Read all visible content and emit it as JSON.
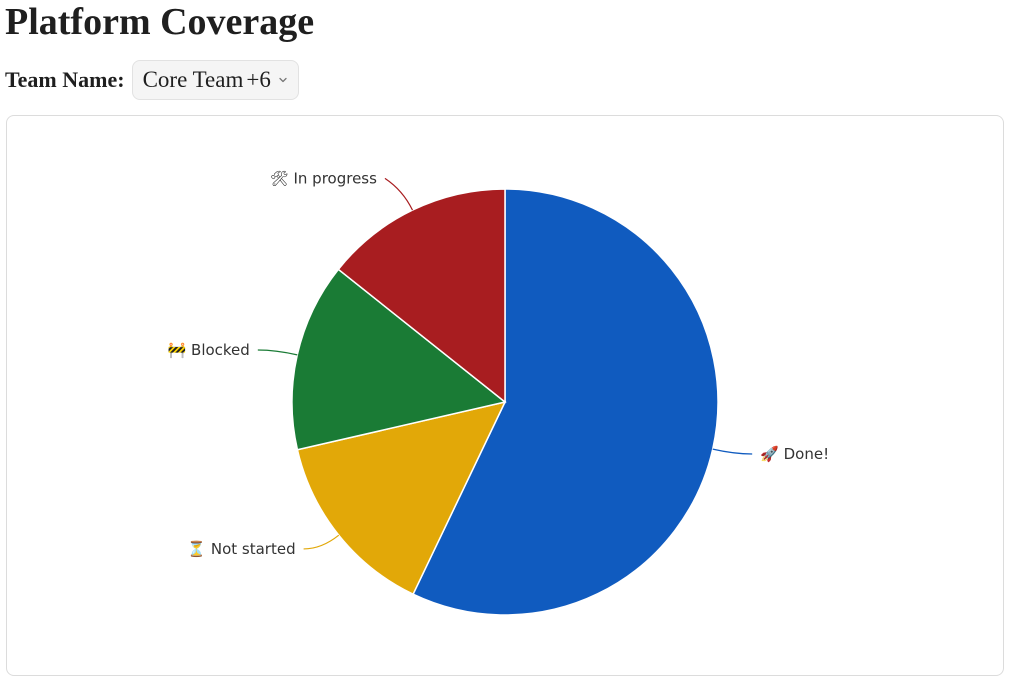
{
  "page": {
    "title": "Platform Coverage"
  },
  "filter": {
    "label": "Team Name:",
    "selected_value": "Core Team",
    "extra_count": "+6"
  },
  "chart_data": {
    "type": "pie",
    "title": "",
    "start_angle_deg": 0,
    "direction": "clockwise",
    "slices": [
      {
        "label": "🚀 Done!",
        "value": 57.1,
        "color": "#105bbf"
      },
      {
        "label": "⏳ Not started",
        "value": 14.3,
        "color": "#e2a808"
      },
      {
        "label": "🚧 Blocked",
        "value": 14.3,
        "color": "#1a7b35"
      },
      {
        "label": "🛠 In progress",
        "value": 14.3,
        "color": "#a81d20"
      }
    ]
  }
}
